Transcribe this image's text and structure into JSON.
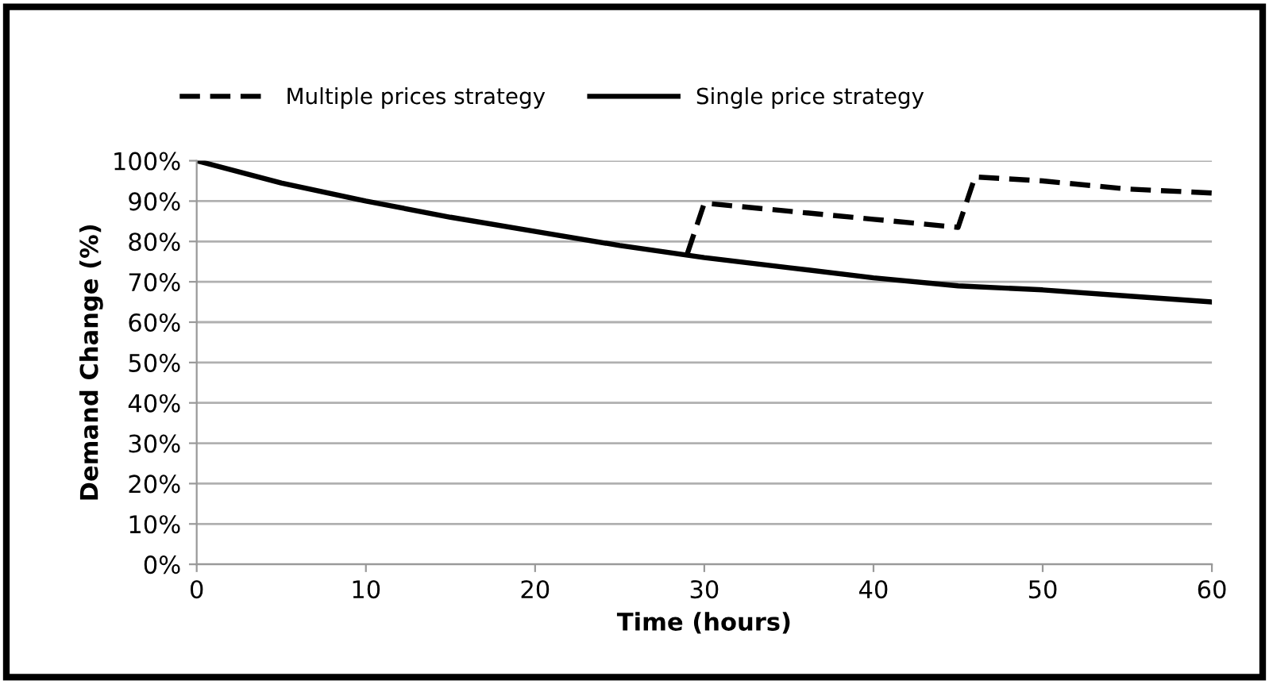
{
  "chart_data": {
    "type": "line",
    "xlabel": "Time (hours)",
    "ylabel": "Demand Change (%)",
    "xlim": [
      0,
      60
    ],
    "xticks": [
      0,
      10,
      20,
      30,
      40,
      50,
      60
    ],
    "ylim": [
      0,
      100
    ],
    "yticks": [
      {
        "value": 0,
        "label": "0%"
      },
      {
        "value": 10,
        "label": "10%"
      },
      {
        "value": 20,
        "label": "20%"
      },
      {
        "value": 30,
        "label": "30%"
      },
      {
        "value": 40,
        "label": "40%"
      },
      {
        "value": 50,
        "label": "50%"
      },
      {
        "value": 60,
        "label": "60%"
      },
      {
        "value": 70,
        "label": "70%"
      },
      {
        "value": 80,
        "label": "80%"
      },
      {
        "value": 90,
        "label": "90%"
      },
      {
        "value": 100,
        "label": "100%"
      }
    ],
    "grid": "y",
    "legend": "top",
    "marker": "none",
    "series": [
      {
        "name": "Multiple prices strategy",
        "color": "#000000",
        "line_style": "dashed",
        "x": [
          29,
          30,
          35,
          40,
          45,
          46,
          50,
          55,
          60
        ],
        "values": [
          77,
          89.5,
          87.5,
          85.5,
          83.5,
          96,
          95,
          93,
          92
        ]
      },
      {
        "name": "Single price strategy",
        "color": "#000000",
        "line_style": "solid",
        "x": [
          0,
          5,
          10,
          15,
          20,
          25,
          30,
          35,
          40,
          45,
          50,
          55,
          60
        ],
        "values": [
          100,
          94.5,
          90,
          86,
          82.5,
          79,
          76,
          73.5,
          71,
          69,
          68,
          66.5,
          65
        ]
      }
    ]
  }
}
